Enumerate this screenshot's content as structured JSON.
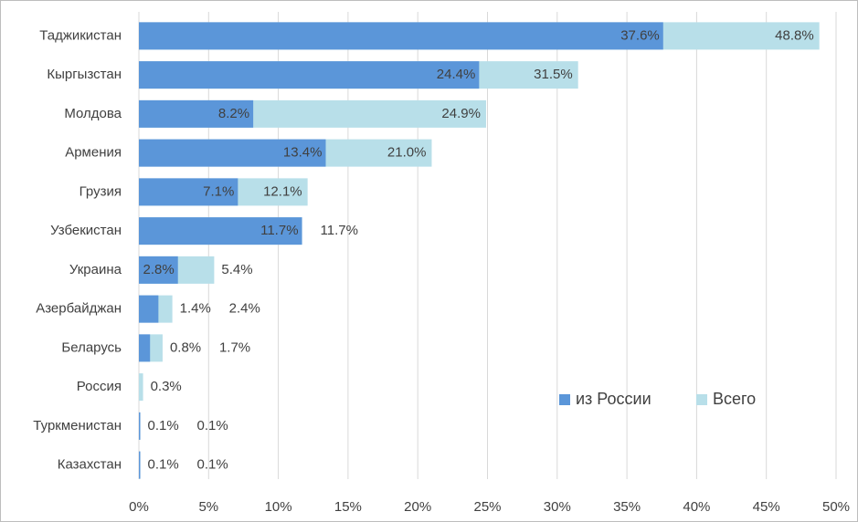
{
  "chart_data": {
    "type": "bar",
    "orientation": "horizontal",
    "overlap": true,
    "categories": [
      "Таджикистан",
      "Кыргызстан",
      "Молдова",
      "Армения",
      "Грузия",
      "Узбекистан",
      "Украина",
      "Азербайджан",
      "Беларусь",
      "Россия",
      "Туркменистан",
      "Казахстан"
    ],
    "series": [
      {
        "name": "из России",
        "color": "#5b96d9",
        "values": [
          37.6,
          24.4,
          8.2,
          13.4,
          7.1,
          11.7,
          2.8,
          1.4,
          0.8,
          null,
          0.1,
          0.1
        ],
        "value_labels": [
          "37.6%",
          "24.4%",
          "8.2%",
          "13.4%",
          "7.1%",
          "11.7%",
          "2.8%",
          "1.4%",
          "0.8%",
          null,
          "0.1%",
          "0.1%"
        ]
      },
      {
        "name": "Всего",
        "color": "#b8dfe9",
        "values": [
          48.8,
          31.5,
          24.9,
          21.0,
          12.1,
          11.7,
          5.4,
          2.4,
          1.7,
          0.3,
          0.1,
          0.1
        ],
        "value_labels": [
          "48.8%",
          "31.5%",
          "24.9%",
          "21.0%",
          "12.1%",
          "11.7%",
          "5.4%",
          "2.4%",
          "1.7%",
          "0.3%",
          "0.1%",
          "0.1%"
        ]
      }
    ],
    "xlim": [
      0,
      50
    ],
    "xticks": [
      {
        "value": 0,
        "label": "0%"
      },
      {
        "value": 5,
        "label": "5%"
      },
      {
        "value": 10,
        "label": "10%"
      },
      {
        "value": 15,
        "label": "15%"
      },
      {
        "value": 20,
        "label": "20%"
      },
      {
        "value": 25,
        "label": "25%"
      },
      {
        "value": 30,
        "label": "30%"
      },
      {
        "value": 35,
        "label": "35%"
      },
      {
        "value": 40,
        "label": "40%"
      },
      {
        "value": 45,
        "label": "45%"
      },
      {
        "value": 50,
        "label": "50%"
      }
    ],
    "grid": true,
    "legend": "lower right"
  }
}
